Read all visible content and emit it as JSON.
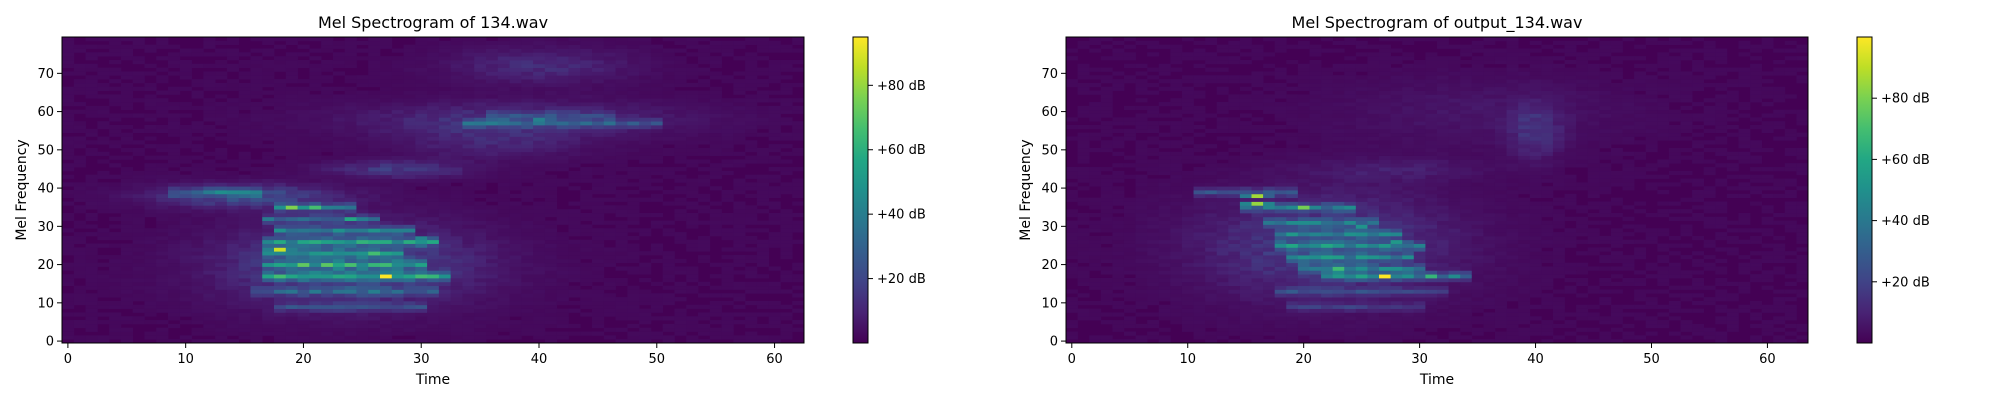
{
  "chart_data": [
    {
      "type": "heatmap",
      "title": "Mel Spectrogram of 134.wav",
      "xlabel": "Time",
      "ylabel": "Mel Frequency",
      "xlim": [
        -0.5,
        62.5
      ],
      "ylim": [
        -0.5,
        79.5
      ],
      "x_ticks": [
        0,
        10,
        20,
        30,
        40,
        50,
        60
      ],
      "y_ticks": [
        0,
        10,
        20,
        30,
        40,
        50,
        60,
        70
      ],
      "colormap": "viridis",
      "colorbar": {
        "vmin": 0,
        "vmax": 95,
        "ticks": [
          20,
          40,
          60,
          80
        ],
        "tick_labels": [
          "+20 dB",
          "+40 dB",
          "+60 dB",
          "+80 dB"
        ]
      },
      "n_time": 63,
      "n_mel": 80,
      "background_db": 2,
      "blobs": [
        {
          "t": 24,
          "m": 20,
          "st": 7,
          "sm": 7,
          "db": 22
        },
        {
          "t": 15,
          "m": 38,
          "st": 5,
          "sm": 2,
          "db": 22
        },
        {
          "t": 38,
          "m": 58,
          "st": 9,
          "sm": 3,
          "db": 12
        },
        {
          "t": 40,
          "m": 72,
          "st": 5,
          "sm": 3,
          "db": 10
        },
        {
          "t": 28,
          "m": 45,
          "st": 4,
          "sm": 1.5,
          "db": 14
        },
        {
          "t": 36,
          "m": 52,
          "st": 5,
          "sm": 3,
          "db": 8
        }
      ],
      "lines": [
        {
          "t0": 17,
          "t1": 32,
          "m": 17,
          "db": 38
        },
        {
          "t0": 17,
          "t1": 30,
          "m": 20,
          "db": 34
        },
        {
          "t0": 17,
          "t1": 28,
          "m": 23,
          "db": 32
        },
        {
          "t0": 17,
          "t1": 31,
          "m": 26,
          "db": 36
        },
        {
          "t0": 18,
          "t1": 29,
          "m": 29,
          "db": 30
        },
        {
          "t0": 17,
          "t1": 26,
          "m": 32,
          "db": 26
        },
        {
          "t0": 18,
          "t1": 24,
          "m": 35,
          "db": 30
        },
        {
          "t0": 16,
          "t1": 31,
          "m": 13,
          "db": 18
        },
        {
          "t0": 18,
          "t1": 30,
          "m": 9,
          "db": 16
        },
        {
          "t0": 34,
          "t1": 50,
          "m": 57,
          "db": 18
        },
        {
          "t0": 36,
          "t1": 46,
          "m": 59,
          "db": 12
        },
        {
          "t0": 9,
          "t1": 16,
          "m": 39,
          "db": 18
        }
      ],
      "peaks": [
        {
          "t": 19,
          "m": 35,
          "db": 90
        },
        {
          "t": 27,
          "m": 17,
          "db": 95
        },
        {
          "t": 29,
          "m": 17,
          "db": 70
        },
        {
          "t": 26,
          "m": 20,
          "db": 80
        },
        {
          "t": 18,
          "m": 24,
          "db": 75
        },
        {
          "t": 18,
          "m": 26,
          "db": 60
        },
        {
          "t": 20,
          "m": 20,
          "db": 60
        },
        {
          "t": 30,
          "m": 27,
          "db": 50
        },
        {
          "t": 24,
          "m": 32,
          "db": 55
        },
        {
          "t": 40,
          "m": 58,
          "db": 38
        },
        {
          "t": 21,
          "m": 35,
          "db": 55
        }
      ]
    },
    {
      "type": "heatmap",
      "title": "Mel Spectrogram of output_134.wav",
      "xlabel": "Time",
      "ylabel": "Mel Frequency",
      "xlim": [
        -0.5,
        63.5
      ],
      "ylim": [
        -0.5,
        79.5
      ],
      "x_ticks": [
        0,
        10,
        20,
        30,
        40,
        50,
        60
      ],
      "y_ticks": [
        0,
        10,
        20,
        30,
        40,
        50,
        60,
        70
      ],
      "colormap": "viridis",
      "colorbar": {
        "vmin": 0,
        "vmax": 100,
        "ticks": [
          20,
          40,
          60,
          80
        ],
        "tick_labels": [
          "+20 dB",
          "+40 dB",
          "+60 dB",
          "+80 dB"
        ]
      },
      "n_time": 64,
      "n_mel": 80,
      "background_db": 2,
      "blobs": [
        {
          "t": 22,
          "m": 25,
          "st": 7,
          "sm": 9,
          "db": 18
        },
        {
          "t": 40,
          "m": 55,
          "st": 1.5,
          "sm": 5,
          "db": 12
        },
        {
          "t": 28,
          "m": 45,
          "st": 5,
          "sm": 2,
          "db": 6
        },
        {
          "t": 35,
          "m": 60,
          "st": 8,
          "sm": 6,
          "db": 4
        }
      ],
      "lines": [
        {
          "t0": 22,
          "t1": 34,
          "m": 17,
          "db": 34
        },
        {
          "t0": 20,
          "t1": 30,
          "m": 19,
          "db": 30
        },
        {
          "t0": 19,
          "t1": 29,
          "m": 22,
          "db": 28
        },
        {
          "t0": 18,
          "t1": 30,
          "m": 25,
          "db": 30
        },
        {
          "t0": 18,
          "t1": 28,
          "m": 28,
          "db": 26
        },
        {
          "t0": 17,
          "t1": 26,
          "m": 31,
          "db": 24
        },
        {
          "t0": 15,
          "t1": 24,
          "m": 35,
          "db": 28
        },
        {
          "t0": 11,
          "t1": 19,
          "m": 39,
          "db": 22
        },
        {
          "t0": 18,
          "t1": 32,
          "m": 13,
          "db": 16
        },
        {
          "t0": 19,
          "t1": 30,
          "m": 9,
          "db": 12
        }
      ],
      "peaks": [
        {
          "t": 16,
          "m": 36,
          "db": 95
        },
        {
          "t": 16,
          "m": 38,
          "db": 70
        },
        {
          "t": 27,
          "m": 17,
          "db": 100
        },
        {
          "t": 29,
          "m": 17,
          "db": 60
        },
        {
          "t": 20,
          "m": 35,
          "db": 72
        },
        {
          "t": 22,
          "m": 25,
          "db": 58
        },
        {
          "t": 23,
          "m": 19,
          "db": 62
        },
        {
          "t": 28,
          "m": 26,
          "db": 52
        },
        {
          "t": 25,
          "m": 30,
          "db": 48
        },
        {
          "t": 31,
          "m": 17,
          "db": 55
        }
      ]
    }
  ]
}
